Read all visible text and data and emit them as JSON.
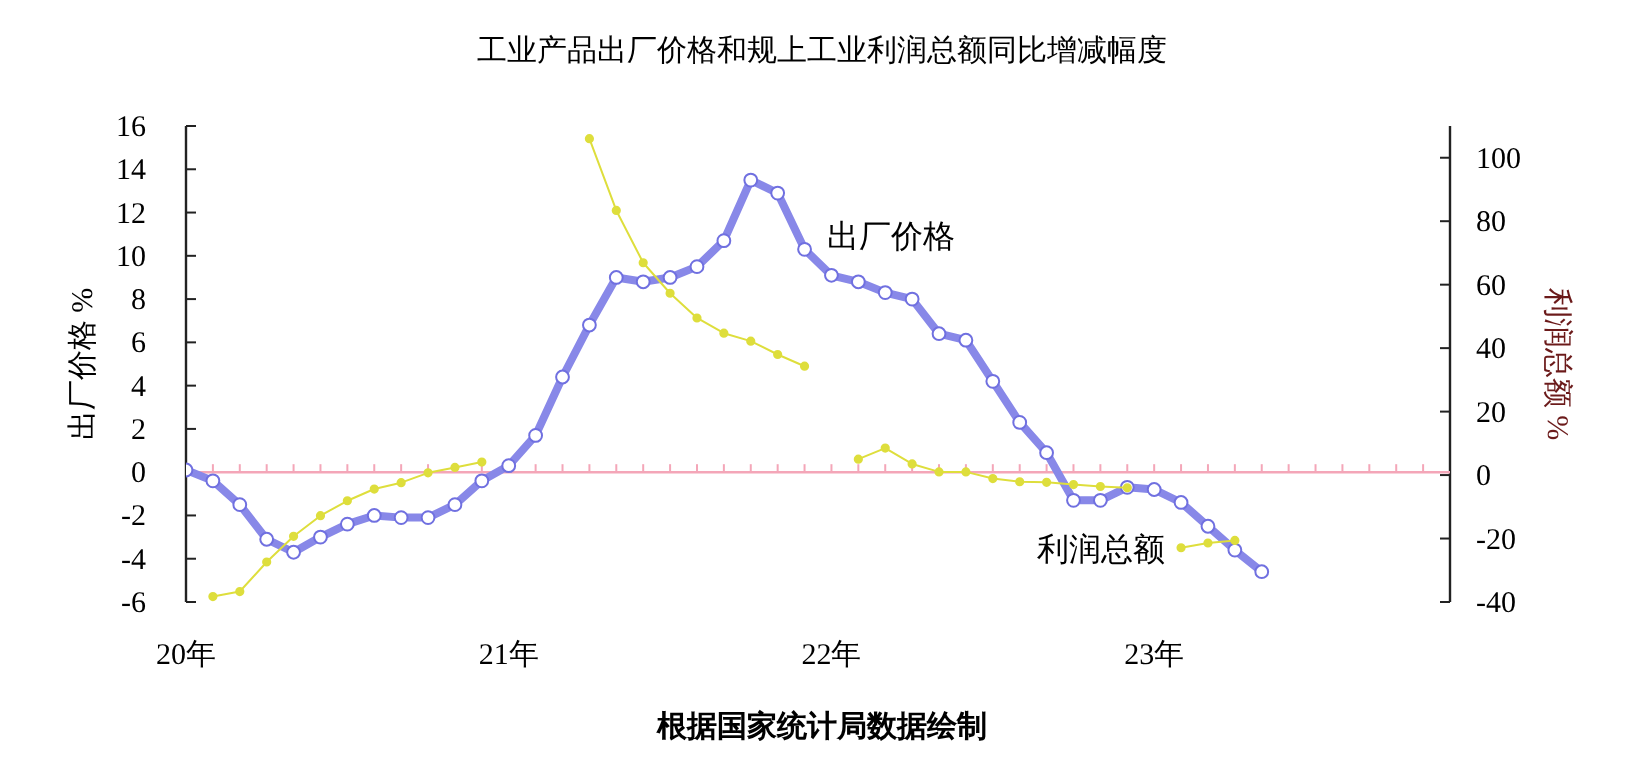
{
  "chart_data": {
    "type": "line",
    "title": "工业产品出厂价格和规上工业利润总额同比增减幅度",
    "xlabel": "根据国家统计局数据绘制",
    "ylabel": "出厂价格 %",
    "y2label": "利润总额 %",
    "xlim": [
      "2020-01",
      "2023-12"
    ],
    "xticks": [
      {
        "value": "2020-01",
        "label": "20年"
      },
      {
        "value": "2021-01",
        "label": "21年"
      },
      {
        "value": "2022-01",
        "label": "22年"
      },
      {
        "value": "2023-01",
        "label": "23年"
      }
    ],
    "ylim": [
      -6,
      16
    ],
    "yticks": [
      -6,
      -4,
      -2,
      0,
      2,
      4,
      6,
      8,
      10,
      12,
      14,
      16
    ],
    "y2lim": [
      -40,
      110
    ],
    "y2ticks": [
      -40,
      -20,
      0,
      20,
      40,
      60,
      80,
      100
    ],
    "ref_lines": [
      {
        "axis": "y",
        "value": 0,
        "color": "#f4a6b8"
      }
    ],
    "series": [
      {
        "name": "出厂价格",
        "color": "#8888e8",
        "marker": "circle",
        "line_style": "solid",
        "x": [
          "2020-01",
          "2020-02",
          "2020-03",
          "2020-04",
          "2020-05",
          "2020-06",
          "2020-07",
          "2020-08",
          "2020-09",
          "2020-10",
          "2020-11",
          "2020-12",
          "2021-01",
          "2021-02",
          "2021-03",
          "2021-04",
          "2021-05",
          "2021-06",
          "2021-07",
          "2021-08",
          "2021-09",
          "2021-10",
          "2021-11",
          "2021-12",
          "2022-01",
          "2022-02",
          "2022-03",
          "2022-04",
          "2022-05",
          "2022-06",
          "2022-07",
          "2022-08",
          "2022-09",
          "2022-10",
          "2022-11",
          "2022-12",
          "2023-01",
          "2023-02",
          "2023-03",
          "2023-04",
          "2023-05"
        ],
        "values": [
          0.1,
          -0.4,
          -1.5,
          -3.1,
          -3.7,
          -3.0,
          -2.4,
          -2.0,
          -2.1,
          -2.1,
          -1.5,
          -0.4,
          0.3,
          1.7,
          4.4,
          6.8,
          9.0,
          8.8,
          9.0,
          9.5,
          10.7,
          13.5,
          12.9,
          10.3,
          9.1,
          8.8,
          8.3,
          8.0,
          6.4,
          6.1,
          4.2,
          2.3,
          0.9,
          -1.3,
          -1.3,
          -0.7,
          -0.8,
          -1.4,
          -2.5,
          -3.6,
          -4.6
        ]
      },
      {
        "name": "利润总额",
        "color": "#dede3c",
        "axis": "y2",
        "marker": "circle",
        "line_style": "solid",
        "x": [
          "2020-02",
          "2020-03",
          "2020-04",
          "2020-05",
          "2020-06",
          "2020-07",
          "2020-08",
          "2020-09",
          "2020-10",
          "2020-11",
          "2020-12",
          "2021-04",
          "2021-05",
          "2021-06",
          "2021-07",
          "2021-08",
          "2021-09",
          "2021-10",
          "2021-11",
          "2021-12",
          "2022-02",
          "2022-03",
          "2022-04",
          "2022-05",
          "2022-06",
          "2022-07",
          "2022-08",
          "2022-09",
          "2022-10",
          "2022-11",
          "2022-12",
          "2023-02",
          "2023-03",
          "2023-04"
        ],
        "values": [
          -38.3,
          -36.7,
          -27.4,
          -19.3,
          -12.8,
          -8.1,
          -4.4,
          -2.4,
          0.7,
          2.4,
          4.1,
          106.0,
          83.4,
          66.9,
          57.3,
          49.5,
          44.7,
          42.2,
          38.0,
          34.3,
          5.0,
          8.5,
          3.5,
          1.0,
          1.0,
          -1.1,
          -2.1,
          -2.3,
          -3.0,
          -3.6,
          -4.0,
          -22.9,
          -21.4,
          -20.6
        ]
      }
    ]
  }
}
